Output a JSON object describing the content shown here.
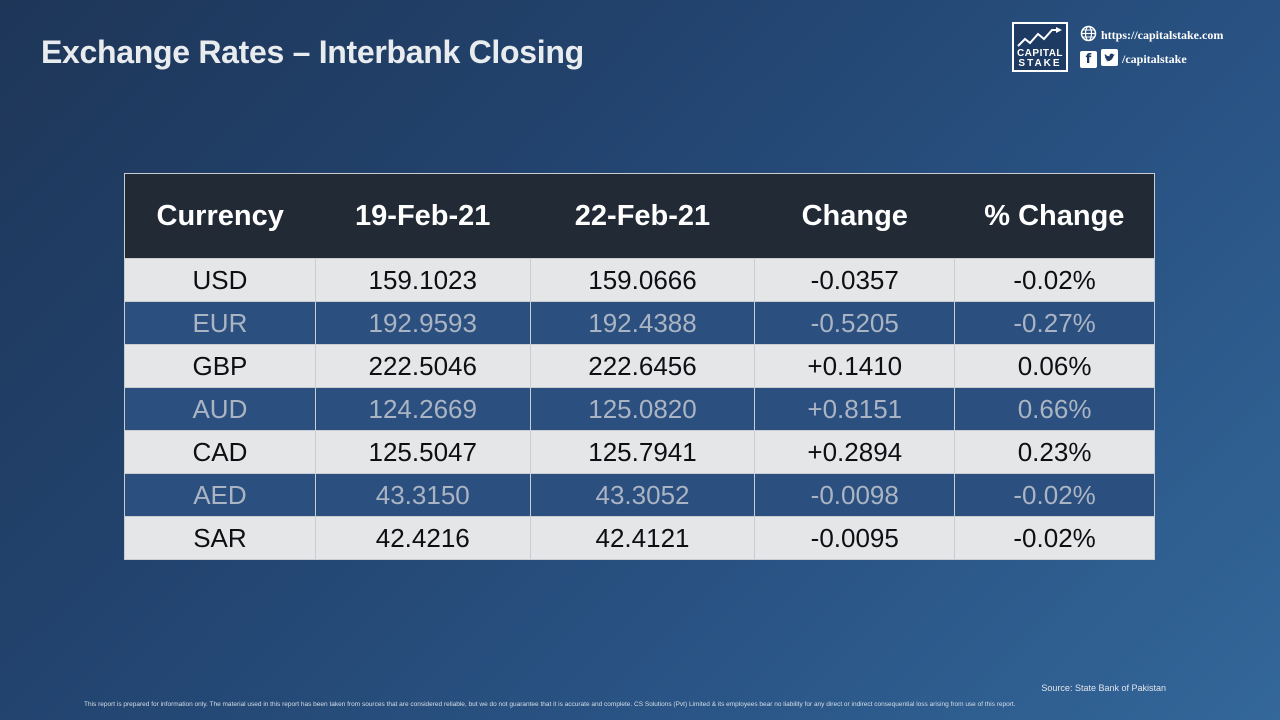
{
  "title": "Exchange Rates – Interbank Closing",
  "logo": {
    "line1": "CAPITAL",
    "line2": "STAKE"
  },
  "contact": {
    "website": "https://capitalstake.com",
    "social": "/capitalstake",
    "icons": [
      "globe-icon",
      "facebook-icon",
      "twitter-icon"
    ]
  },
  "table": {
    "headers": [
      "Currency",
      "19-Feb-21",
      "22-Feb-21",
      "Change",
      "% Change"
    ],
    "rows": [
      [
        "USD",
        "159.1023",
        "159.0666",
        "-0.0357",
        "-0.02%"
      ],
      [
        "EUR",
        "192.9593",
        "192.4388",
        "-0.5205",
        "-0.27%"
      ],
      [
        "GBP",
        "222.5046",
        "222.6456",
        "+0.1410",
        "0.06%"
      ],
      [
        "AUD",
        "124.2669",
        "125.0820",
        "+0.8151",
        "0.66%"
      ],
      [
        "CAD",
        "125.5047",
        "125.7941",
        "+0.2894",
        "0.23%"
      ],
      [
        "AED",
        "43.3150",
        "43.3052",
        "-0.0098",
        "-0.02%"
      ],
      [
        "SAR",
        "42.4216",
        "42.4121",
        "-0.0095",
        "-0.02%"
      ]
    ]
  },
  "source": "Source: State Bank of Pakistan",
  "disclaimer": "This report is prepared for information only. The material used in this report has been taken from sources that are considered reliable, but we do not guarantee that it is accurate and complete. CS Solutions (Pvt) Limited & its employees bear no liability for any direct or indirect consequential loss arising from use of this report.",
  "colors": {
    "header_bg": "#222a36",
    "light_row": "#e5e6e8",
    "dark_row": "#2b4f7f"
  }
}
